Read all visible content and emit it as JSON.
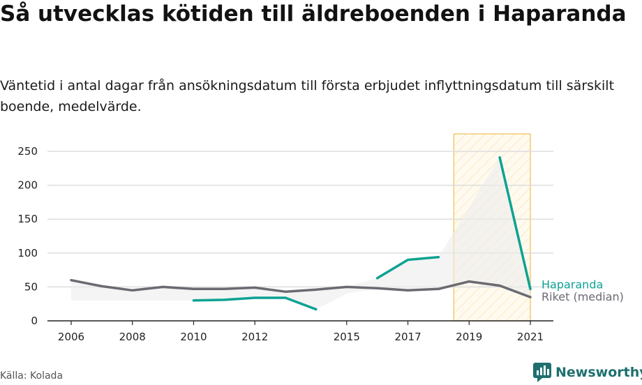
{
  "title": "Så utvecklas kötiden till äldreboenden i Haparanda",
  "subtitle": "Väntetid i antal dagar från ansökningsdatum till första erbjudet inflyttningsdatum till särskilt boende, medelvärde.",
  "source": "Källa: Kolada",
  "brand": "Newsworthy",
  "colors": {
    "haparanda": "#0da293",
    "riket": "#6a6a72",
    "highlight": "#f2c45c",
    "grid": "#dddddd",
    "brand": "#1f6f70"
  },
  "chart_data": {
    "type": "line",
    "x_ticks": [
      "2006",
      "2008",
      "2010",
      "2012",
      "2015",
      "2017",
      "2019",
      "2021"
    ],
    "y_ticks": [
      "0",
      "50",
      "100",
      "150",
      "200",
      "250"
    ],
    "xlim": [
      2006,
      2021
    ],
    "ylim": [
      0,
      250
    ],
    "highlight_range": [
      2019,
      2021
    ],
    "series": [
      {
        "name": "Haparanda",
        "color": "#0da293",
        "x": [
          2006,
          2007,
          2008,
          2009,
          2010,
          2011,
          2012,
          2013,
          2014,
          2015,
          2016,
          2017,
          2018,
          2019,
          2020,
          2021
        ],
        "y": [
          null,
          null,
          null,
          null,
          30,
          31,
          34,
          34,
          17,
          null,
          63,
          90,
          94,
          null,
          241,
          47
        ]
      },
      {
        "name": "Riket (median)",
        "color": "#6a6a72",
        "x": [
          2006,
          2007,
          2008,
          2009,
          2010,
          2011,
          2012,
          2013,
          2014,
          2015,
          2016,
          2017,
          2018,
          2019,
          2020,
          2021
        ],
        "y": [
          60,
          51,
          45,
          50,
          47,
          47,
          49,
          43,
          46,
          50,
          48,
          45,
          47,
          58,
          52,
          35
        ]
      }
    ]
  }
}
